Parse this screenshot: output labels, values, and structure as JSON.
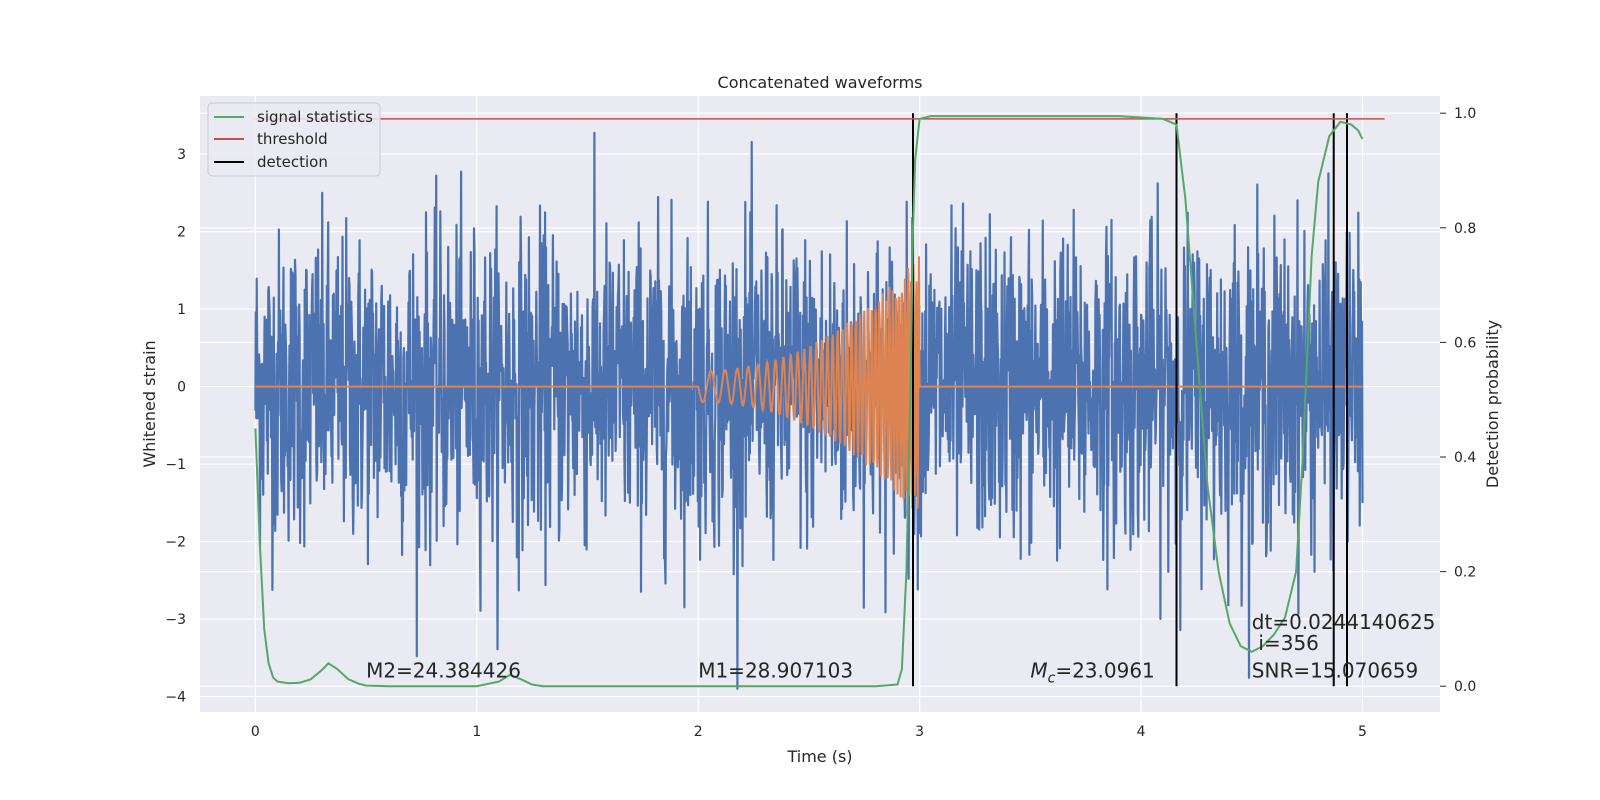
{
  "chart_data": {
    "type": "line",
    "title": "Concatenated waveforms",
    "xlabel": "Time (s)",
    "ylabel": "Whitened strain",
    "y2label": "Detection probability",
    "xlim": [
      -0.25,
      5.35
    ],
    "ylim": [
      -4.2,
      3.75
    ],
    "y2lim": [
      -0.045,
      1.03
    ],
    "xticks": [
      0,
      1,
      2,
      3,
      4,
      5
    ],
    "yticks": [
      -4,
      -3,
      -2,
      -1,
      0,
      1,
      2,
      3
    ],
    "y2ticks": [
      0.0,
      0.2,
      0.4,
      0.6,
      0.8,
      1.0
    ],
    "grid": true,
    "legend_position": "top-left",
    "colors": {
      "background": "#eaeaf2",
      "grid": "#ffffff",
      "noise": "#4c72b0",
      "template": "#dd8452",
      "signal_statistics": "#55a868",
      "threshold": "#c44e52",
      "detection": "#000000"
    },
    "series": [
      {
        "name": "signal statistics",
        "axis": "right",
        "x": [
          0,
          0.02,
          0.04,
          0.06,
          0.08,
          0.1,
          0.15,
          0.2,
          0.25,
          0.3,
          0.33,
          0.37,
          0.42,
          0.47,
          0.5,
          0.6,
          0.8,
          1.0,
          1.1,
          1.15,
          1.2,
          1.25,
          1.3,
          1.5,
          2.0,
          2.5,
          2.8,
          2.9,
          2.92,
          2.94,
          2.96,
          2.97,
          2.98,
          3.0,
          3.05,
          3.3,
          3.6,
          3.9,
          4.1,
          4.16,
          4.2,
          4.25,
          4.3,
          4.35,
          4.4,
          4.45,
          4.5,
          4.55,
          4.6,
          4.65,
          4.7,
          4.73,
          4.77,
          4.8,
          4.85,
          4.9,
          4.95,
          4.98,
          5.0
        ],
        "values": [
          0.45,
          0.25,
          0.1,
          0.04,
          0.015,
          0.008,
          0.005,
          0.006,
          0.012,
          0.028,
          0.04,
          0.03,
          0.012,
          0.004,
          0.001,
          0.0,
          0.0,
          0.0,
          0.008,
          0.02,
          0.012,
          0.003,
          0.0,
          0.0,
          0.0,
          0.0,
          0.0,
          0.003,
          0.03,
          0.2,
          0.55,
          0.8,
          0.92,
          0.99,
          0.995,
          0.995,
          0.995,
          0.995,
          0.99,
          0.98,
          0.85,
          0.6,
          0.35,
          0.2,
          0.11,
          0.07,
          0.06,
          0.07,
          0.09,
          0.12,
          0.2,
          0.4,
          0.75,
          0.88,
          0.96,
          0.985,
          0.98,
          0.97,
          0.955
        ]
      },
      {
        "name": "threshold",
        "axis": "right",
        "x": [
          0,
          5.1
        ],
        "values": [
          0.99,
          0.99
        ]
      },
      {
        "name": "detection",
        "axis": "right",
        "x": [
          2.97,
          4.16,
          4.87,
          4.93
        ],
        "values": [
          1.0,
          1.0,
          1.0,
          1.0
        ]
      }
    ],
    "template_chirp": {
      "start": 2.0,
      "end": 3.0,
      "amplitude_start": 0.2,
      "amplitude_end": 1.7
    },
    "noise": {
      "x_range": [
        0,
        5
      ],
      "typical_extent": [
        -1.5,
        1.5
      ],
      "peak_extent": [
        -3.9,
        3.4
      ]
    },
    "annotations": [
      {
        "text": "M2=24.384426",
        "x": 0.5,
        "y": 0.015
      },
      {
        "text": "M1=28.907103",
        "x": 2.0,
        "y": 0.015
      },
      {
        "text": "=23.0961",
        "prefix": "M",
        "sub": "c",
        "x": 3.5,
        "y": 0.015
      },
      {
        "text": "dt=0.0244140625",
        "x": 4.5,
        "y": 0.1
      },
      {
        "text": "i=356",
        "x": 4.53,
        "y": 0.063
      },
      {
        "text": "SNR=15.070659",
        "x": 4.5,
        "y": 0.015
      }
    ]
  }
}
